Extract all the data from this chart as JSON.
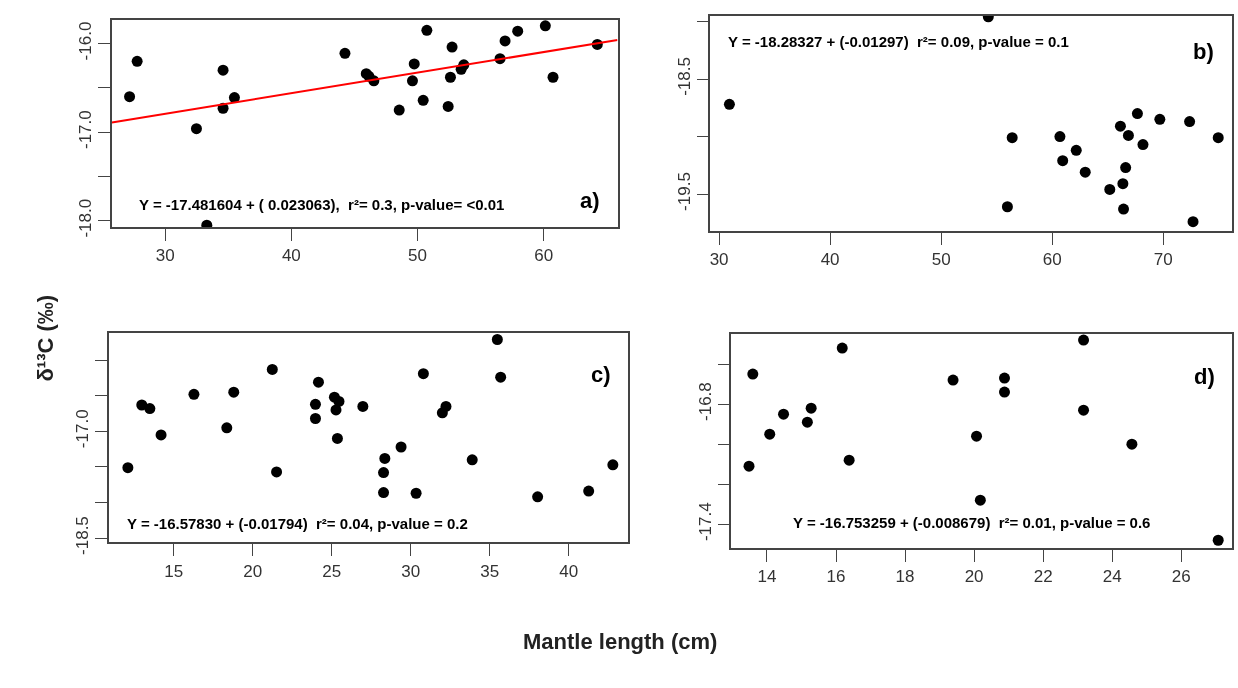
{
  "chart_data": [
    {
      "type": "scatter",
      "ylabel": "δ¹³C (‰)",
      "xlabel": "Mantle length (cm)",
      "marker": "circle",
      "xlim": [
        25.78,
        65.85
      ],
      "xticks": [
        30,
        40,
        50,
        60
      ],
      "ylim": [
        -18.07,
        -15.73
      ],
      "yticks": [
        {
          "value": -16,
          "label": "-16.0"
        },
        {
          "value": -16.5,
          "label": null
        },
        {
          "value": -17,
          "label": "-17.0"
        },
        {
          "value": -17.5,
          "label": null
        },
        {
          "value": -18,
          "label": "-18.0"
        }
      ],
      "annotations": [
        "Y = -17.481604 + ( 0.023063),  r²= 0.3, p-value= <0.01",
        "a)"
      ],
      "series": [
        {
          "color": "#000000",
          "x": [
            27.18,
            27.78,
            32.48,
            33.3,
            34.59,
            34.59,
            35.49,
            44.25,
            45.94,
            46.15,
            46.54,
            48.55,
            49.6,
            49.74,
            50.45,
            50.74,
            52.43,
            52.61,
            52.74,
            53.46,
            53.67,
            56.54,
            56.94,
            57.94,
            60.13,
            60.74,
            64.25
          ],
          "values": [
            -16.6,
            -16.2,
            -16.96,
            -18.05,
            -16.3,
            -16.73,
            -16.61,
            -16.11,
            -16.34,
            -16.37,
            -16.42,
            -16.75,
            -16.42,
            -16.23,
            -16.64,
            -15.85,
            -16.71,
            -16.38,
            -16.04,
            -16.29,
            -16.24,
            -16.17,
            -15.97,
            -15.86,
            -15.8,
            -16.38,
            -16.01
          ]
        },
        {
          "type": "line",
          "marker": "none",
          "color": "#ff0000",
          "x": [
            25.78,
            65.85
          ],
          "values": [
            -16.89,
            -15.96
          ]
        }
      ]
    },
    {
      "type": "scatter",
      "marker": "circle",
      "xlim": [
        29.22,
        76.2
      ],
      "xticks": [
        30,
        40,
        50,
        60,
        70
      ],
      "ylim": [
        -19.82,
        -17.95
      ],
      "yticks": [
        {
          "value": -18,
          "label": null
        },
        {
          "value": -18.5,
          "label": "-18.5"
        },
        {
          "value": -19,
          "label": null
        },
        {
          "value": -19.5,
          "label": "-19.5"
        }
      ],
      "annotations": [
        "Y = -18.28327 + (-0.01297)  r²= 0.09, p-value = 0.1",
        "b)"
      ],
      "series": [
        {
          "color": "#000000",
          "x": [
            30.93,
            54.25,
            55.97,
            56.4,
            60.7,
            60.95,
            62.17,
            62.98,
            65.19,
            66.15,
            66.37,
            66.43,
            66.62,
            66.87,
            67.68,
            68.18,
            69.7,
            72.38,
            72.69,
            74.96
          ],
          "values": [
            -18.72,
            -17.96,
            -19.61,
            -19.01,
            -19.0,
            -19.21,
            -19.12,
            -19.31,
            -19.46,
            -18.91,
            -19.41,
            -19.63,
            -19.27,
            -18.99,
            -18.8,
            -19.07,
            -18.85,
            -18.87,
            -19.74,
            -19.01
          ]
        }
      ]
    },
    {
      "type": "scatter",
      "marker": "circle",
      "xlim": [
        10.9,
        43.78
      ],
      "xticks": [
        15,
        20,
        25,
        30,
        35,
        40
      ],
      "ylim": [
        -18.56,
        -15.62
      ],
      "yticks": [
        {
          "value": -16,
          "label": null
        },
        {
          "value": -16.5,
          "label": null
        },
        {
          "value": -17,
          "label": "-17.0"
        },
        {
          "value": -17.5,
          "label": null
        },
        {
          "value": -18,
          "label": null
        },
        {
          "value": -18.5,
          "label": "-18.5"
        }
      ],
      "annotations": [
        "Y = -16.57830 + (-0.01794)  r²= 0.04, p-value = 0.2",
        "c)"
      ],
      "series": [
        {
          "color": "#000000",
          "x": [
            12.1,
            12.98,
            13.49,
            14.2,
            16.28,
            18.36,
            18.8,
            21.24,
            21.51,
            23.97,
            23.97,
            24.16,
            25.17,
            25.27,
            25.36,
            25.46,
            26.97,
            28.28,
            28.28,
            28.36,
            29.39,
            30.34,
            30.8,
            32.0,
            32.23,
            33.89,
            35.48,
            35.69,
            38.03,
            41.26,
            42.79
          ],
          "values": [
            -17.51,
            -16.63,
            -16.68,
            -17.05,
            -16.48,
            -16.95,
            -16.45,
            -16.13,
            -17.57,
            -16.62,
            -16.82,
            -16.31,
            -16.52,
            -16.7,
            -17.1,
            -16.58,
            -16.65,
            -17.58,
            -17.86,
            -17.38,
            -17.22,
            -17.87,
            -16.19,
            -16.74,
            -16.65,
            -17.4,
            -15.71,
            -16.24,
            -17.92,
            -17.84,
            -17.47
          ]
        }
      ]
    },
    {
      "type": "scatter",
      "marker": "circle",
      "xlim": [
        12.97,
        27.47
      ],
      "xticks": [
        14,
        16,
        18,
        20,
        22,
        24,
        26
      ],
      "ylim": [
        -17.52,
        -16.45
      ],
      "yticks": [
        {
          "value": -16.6,
          "label": null
        },
        {
          "value": -16.8,
          "label": "-16.8"
        },
        {
          "value": -17,
          "label": null
        },
        {
          "value": -17.2,
          "label": null
        },
        {
          "value": -17.4,
          "label": "-17.4"
        }
      ],
      "annotations": [
        "Y = -16.753259 + (-0.008679)  r²= 0.01, p-value = 0.6",
        "d)"
      ],
      "series": [
        {
          "color": "#000000",
          "x": [
            13.48,
            13.59,
            14.08,
            14.48,
            15.17,
            15.28,
            16.18,
            16.38,
            19.39,
            20.07,
            20.18,
            20.88,
            20.88,
            23.17,
            23.17,
            24.57,
            27.07
          ],
          "values": [
            -17.11,
            -16.65,
            -16.95,
            -16.85,
            -16.89,
            -16.82,
            -16.52,
            -17.08,
            -16.68,
            -16.96,
            -17.28,
            -16.67,
            -16.74,
            -16.48,
            -16.83,
            -17.0,
            -17.48
          ]
        }
      ]
    }
  ]
}
